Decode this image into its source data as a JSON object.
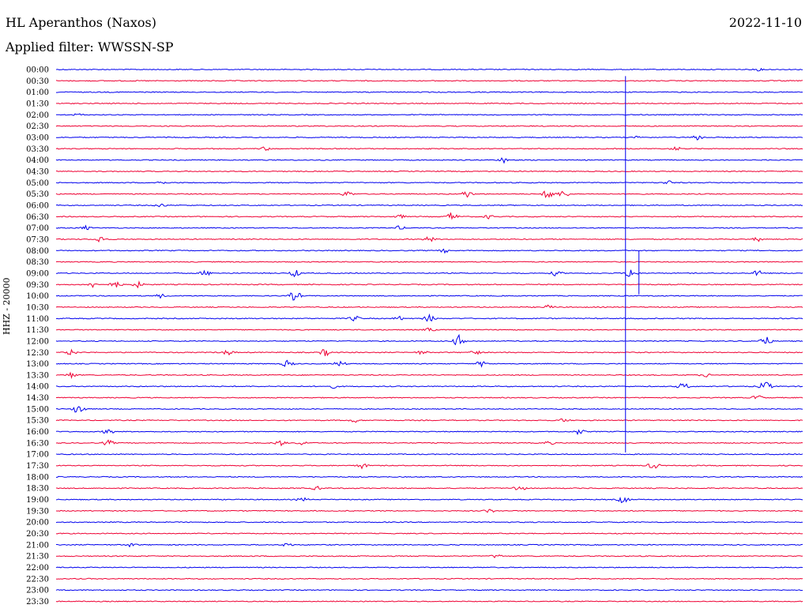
{
  "header": {
    "station": "HL Aperanthos (Naxos)",
    "filter": "Applied filter: WWSSN-SP",
    "date": "2022-11-10"
  },
  "channel_label": "HHZ - 20000",
  "colors": {
    "even": "#0000ee",
    "odd": "#ee0033"
  },
  "chart_data": {
    "type": "line",
    "title": "HL Aperanthos (Naxos)",
    "subtitle": "Applied filter: WWSSN-SP",
    "ylabel": "HHZ - 20000",
    "xlabel": "",
    "grid": false,
    "rows": [
      {
        "label": "00:00",
        "events": [
          {
            "pos": 0.94,
            "amp": 2
          }
        ]
      },
      {
        "label": "00:30",
        "events": []
      },
      {
        "label": "01:00",
        "events": []
      },
      {
        "label": "01:30",
        "events": []
      },
      {
        "label": "02:00",
        "events": [
          {
            "pos": 0.03,
            "amp": 2
          }
        ]
      },
      {
        "label": "02:30",
        "events": []
      },
      {
        "label": "03:00",
        "events": [
          {
            "pos": 0.78,
            "amp": 2
          },
          {
            "pos": 0.86,
            "amp": 4
          }
        ]
      },
      {
        "label": "03:30",
        "events": [
          {
            "pos": 0.28,
            "amp": 3
          },
          {
            "pos": 0.83,
            "amp": 3
          }
        ]
      },
      {
        "label": "04:00",
        "events": [
          {
            "pos": 0.6,
            "amp": 4
          }
        ]
      },
      {
        "label": "04:30",
        "events": []
      },
      {
        "label": "05:00",
        "events": [
          {
            "pos": 0.14,
            "amp": 3
          },
          {
            "pos": 0.82,
            "amp": 3
          }
        ]
      },
      {
        "label": "05:30",
        "events": [
          {
            "pos": 0.39,
            "amp": 4
          },
          {
            "pos": 0.55,
            "amp": 5
          },
          {
            "pos": 0.66,
            "amp": 7
          },
          {
            "pos": 0.68,
            "amp": 5
          }
        ]
      },
      {
        "label": "06:00",
        "events": [
          {
            "pos": 0.14,
            "amp": 3
          }
        ]
      },
      {
        "label": "06:30",
        "events": [
          {
            "pos": 0.46,
            "amp": 3
          },
          {
            "pos": 0.53,
            "amp": 6
          },
          {
            "pos": 0.58,
            "amp": 3
          }
        ]
      },
      {
        "label": "07:00",
        "events": [
          {
            "pos": 0.04,
            "amp": 3
          },
          {
            "pos": 0.46,
            "amp": 3
          }
        ]
      },
      {
        "label": "07:30",
        "events": [
          {
            "pos": 0.06,
            "amp": 5
          },
          {
            "pos": 0.5,
            "amp": 4
          },
          {
            "pos": 0.94,
            "amp": 3
          }
        ]
      },
      {
        "label": "08:00",
        "events": [
          {
            "pos": 0.52,
            "amp": 3
          }
        ]
      },
      {
        "label": "08:30",
        "events": []
      },
      {
        "label": "09:00",
        "events": [
          {
            "pos": 0.2,
            "amp": 4
          },
          {
            "pos": 0.32,
            "amp": 5
          },
          {
            "pos": 0.67,
            "amp": 4
          },
          {
            "pos": 0.77,
            "amp": 8
          },
          {
            "pos": 0.94,
            "amp": 4
          }
        ]
      },
      {
        "label": "09:30",
        "events": [
          {
            "pos": 0.05,
            "amp": 4
          },
          {
            "pos": 0.08,
            "amp": 5
          },
          {
            "pos": 0.11,
            "amp": 4
          }
        ]
      },
      {
        "label": "10:00",
        "events": [
          {
            "pos": 0.14,
            "amp": 3
          },
          {
            "pos": 0.32,
            "amp": 7
          }
        ]
      },
      {
        "label": "10:30",
        "events": [
          {
            "pos": 0.66,
            "amp": 3
          }
        ]
      },
      {
        "label": "11:00",
        "events": [
          {
            "pos": 0.4,
            "amp": 4
          },
          {
            "pos": 0.46,
            "amp": 3
          },
          {
            "pos": 0.5,
            "amp": 5
          }
        ]
      },
      {
        "label": "11:30",
        "events": [
          {
            "pos": 0.5,
            "amp": 3
          }
        ]
      },
      {
        "label": "12:00",
        "events": [
          {
            "pos": 0.54,
            "amp": 8
          },
          {
            "pos": 0.95,
            "amp": 7
          }
        ]
      },
      {
        "label": "12:30",
        "events": [
          {
            "pos": 0.02,
            "amp": 4
          },
          {
            "pos": 0.23,
            "amp": 4
          },
          {
            "pos": 0.36,
            "amp": 5
          },
          {
            "pos": 0.49,
            "amp": 3
          },
          {
            "pos": 0.56,
            "amp": 4
          }
        ]
      },
      {
        "label": "13:00",
        "events": [
          {
            "pos": 0.31,
            "amp": 5
          },
          {
            "pos": 0.38,
            "amp": 4
          },
          {
            "pos": 0.57,
            "amp": 4
          }
        ]
      },
      {
        "label": "13:30",
        "events": [
          {
            "pos": 0.02,
            "amp": 4
          },
          {
            "pos": 0.87,
            "amp": 3
          }
        ]
      },
      {
        "label": "14:00",
        "events": [
          {
            "pos": 0.37,
            "amp": 3
          },
          {
            "pos": 0.84,
            "amp": 5
          },
          {
            "pos": 0.95,
            "amp": 7
          }
        ]
      },
      {
        "label": "14:30",
        "events": [
          {
            "pos": 0.94,
            "amp": 4
          }
        ]
      },
      {
        "label": "15:00",
        "events": [
          {
            "pos": 0.03,
            "amp": 8
          }
        ]
      },
      {
        "label": "15:30",
        "events": [
          {
            "pos": 0.4,
            "amp": 3
          },
          {
            "pos": 0.68,
            "amp": 3
          }
        ]
      },
      {
        "label": "16:00",
        "events": [
          {
            "pos": 0.07,
            "amp": 4
          },
          {
            "pos": 0.7,
            "amp": 4
          }
        ]
      },
      {
        "label": "16:30",
        "events": [
          {
            "pos": 0.07,
            "amp": 4
          },
          {
            "pos": 0.3,
            "amp": 4
          },
          {
            "pos": 0.33,
            "amp": 3
          },
          {
            "pos": 0.66,
            "amp": 3
          }
        ]
      },
      {
        "label": "17:00",
        "events": []
      },
      {
        "label": "17:30",
        "events": [
          {
            "pos": 0.41,
            "amp": 4
          },
          {
            "pos": 0.8,
            "amp": 5
          }
        ]
      },
      {
        "label": "18:00",
        "events": []
      },
      {
        "label": "18:30",
        "events": [
          {
            "pos": 0.35,
            "amp": 3
          },
          {
            "pos": 0.62,
            "amp": 5
          }
        ]
      },
      {
        "label": "19:00",
        "events": [
          {
            "pos": 0.33,
            "amp": 3
          },
          {
            "pos": 0.76,
            "amp": 5
          }
        ]
      },
      {
        "label": "19:30",
        "events": [
          {
            "pos": 0.58,
            "amp": 3
          }
        ]
      },
      {
        "label": "20:00",
        "events": []
      },
      {
        "label": "20:30",
        "events": []
      },
      {
        "label": "21:00",
        "events": [
          {
            "pos": 0.1,
            "amp": 3
          },
          {
            "pos": 0.31,
            "amp": 3
          }
        ]
      },
      {
        "label": "21:30",
        "events": [
          {
            "pos": 0.59,
            "amp": 3
          }
        ]
      },
      {
        "label": "22:00",
        "events": []
      },
      {
        "label": "22:30",
        "events": []
      },
      {
        "label": "23:00",
        "events": []
      },
      {
        "label": "23:30",
        "events": []
      }
    ],
    "large_event": {
      "pos": 0.75,
      "start_row": "00:30",
      "end_row": "16:30"
    }
  }
}
